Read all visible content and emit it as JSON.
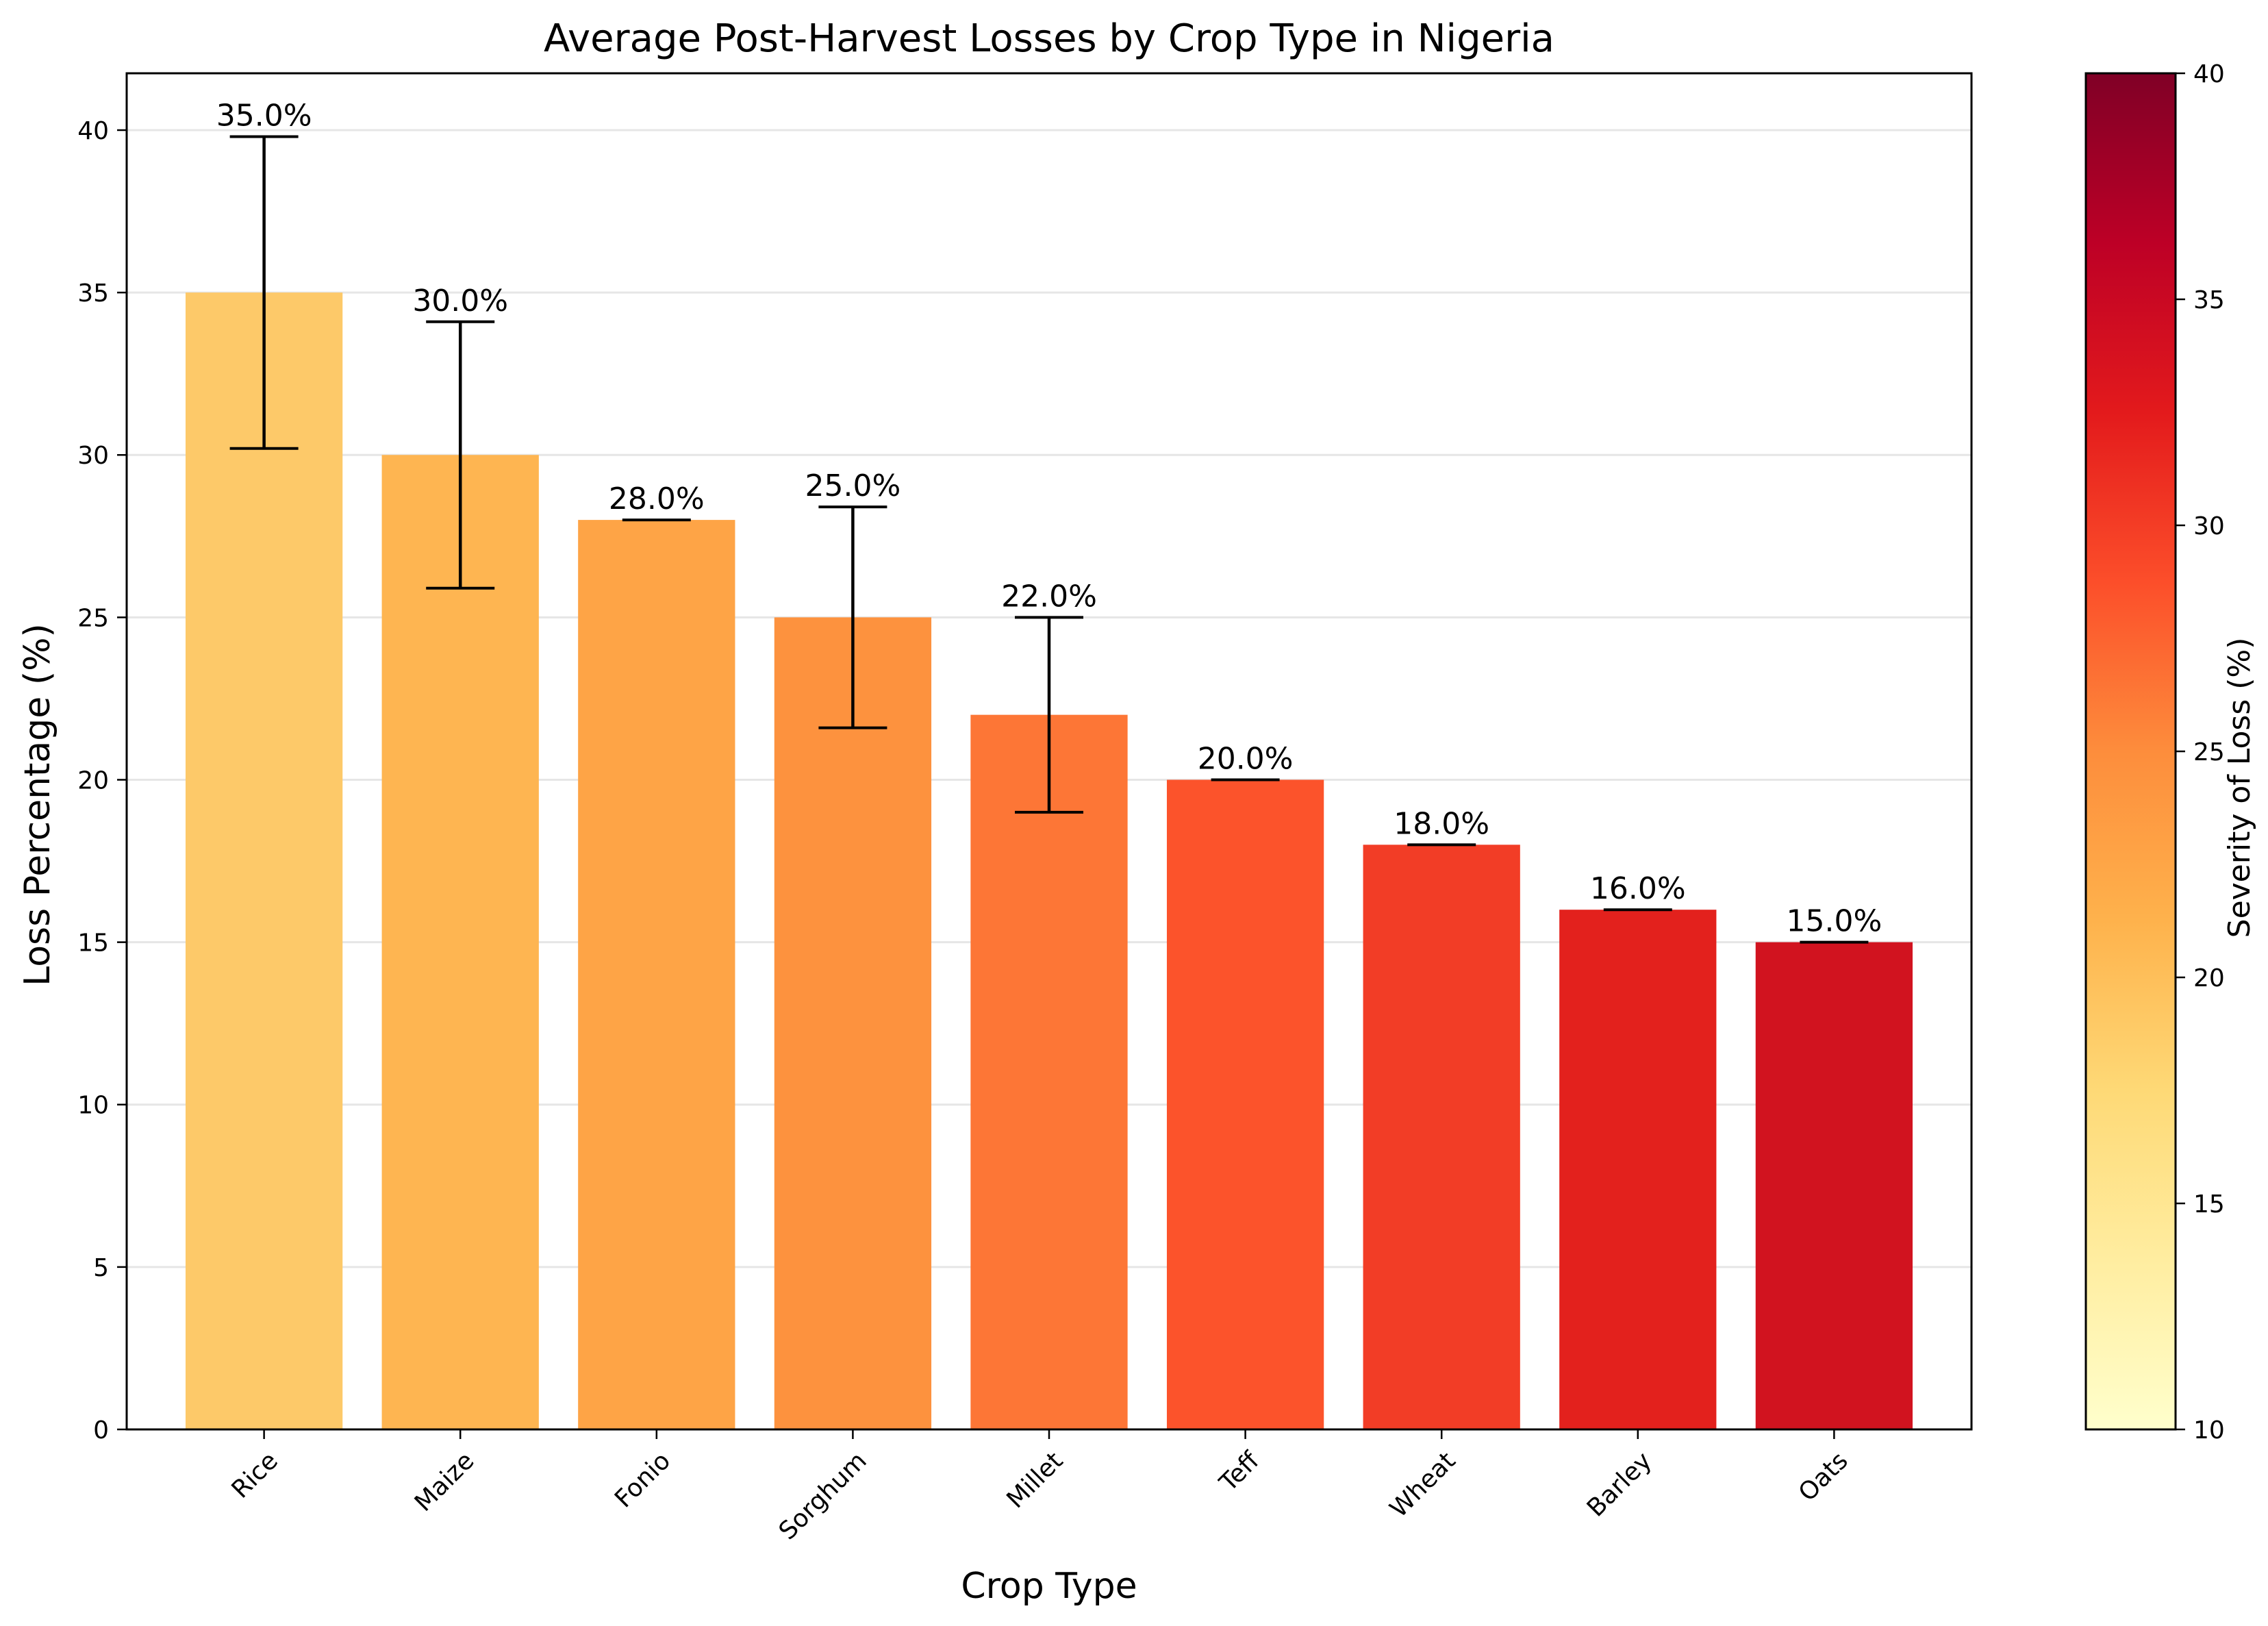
{
  "chart_data": {
    "type": "bar",
    "title": "Average Post-Harvest Losses by Crop Type in Nigeria",
    "xlabel": "Crop Type",
    "ylabel": "Loss Percentage (%)",
    "categories": [
      "Rice",
      "Maize",
      "Fonio",
      "Sorghum",
      "Millet",
      "Teff",
      "Wheat",
      "Barley",
      "Oats"
    ],
    "values": [
      35.0,
      30.0,
      28.0,
      25.0,
      22.0,
      20.0,
      18.0,
      16.0,
      15.0
    ],
    "value_labels": [
      "35.0%",
      "30.0%",
      "28.0%",
      "25.0%",
      "22.0%",
      "20.0%",
      "18.0%",
      "16.0%",
      "15.0%"
    ],
    "errors": [
      4.8,
      4.1,
      0,
      3.4,
      3.0,
      0,
      0,
      0,
      0
    ],
    "bar_colors": [
      "#fdc969",
      "#feb551",
      "#fea446",
      "#fd923e",
      "#fd7636",
      "#fc532b",
      "#f23d26",
      "#e3211d",
      "#d1131f"
    ],
    "ylim": [
      0,
      41.75
    ],
    "yticks": [
      0,
      5,
      10,
      15,
      20,
      25,
      30,
      35,
      40
    ],
    "grid": "horizontal",
    "colorbar": {
      "label": "Severity of Loss (%)",
      "range": [
        10,
        40
      ],
      "ticks": [
        10,
        15,
        20,
        25,
        30,
        35,
        40
      ],
      "colormap": "YlOrRd",
      "stops": [
        "#ffffcc",
        "#ffeda0",
        "#fed976",
        "#feb24c",
        "#fd8d3c",
        "#fc4e2a",
        "#e31a1c",
        "#bd0026",
        "#800026"
      ]
    }
  }
}
